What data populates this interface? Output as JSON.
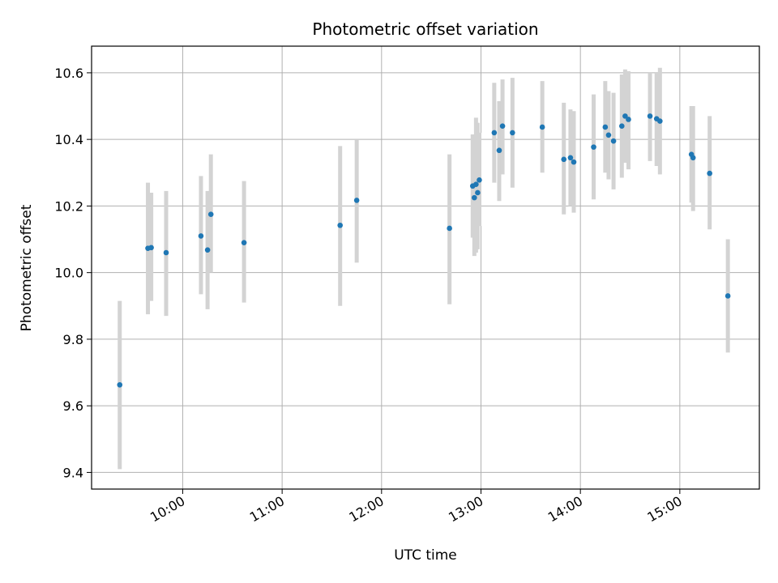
{
  "chart_data": {
    "type": "scatter",
    "title": "Photometric offset variation",
    "xlabel": "UTC time",
    "ylabel": "Photometric offset",
    "x_ticks": [
      "10:00",
      "11:00",
      "12:00",
      "13:00",
      "14:00",
      "15:00"
    ],
    "y_ticks": [
      "9.4",
      "9.6",
      "9.8",
      "10.0",
      "10.2",
      "10.4",
      "10.6"
    ],
    "xlim": [
      "09:05",
      "15:48"
    ],
    "ylim": [
      9.35,
      10.68
    ],
    "grid": true,
    "errorbar_color": "#d3d3d3",
    "point_color": "#1f77b4",
    "points": [
      {
        "t": "09:22",
        "y": 9.663,
        "lo": 9.41,
        "hi": 9.915
      },
      {
        "t": "09:39",
        "y": 10.073,
        "lo": 9.875,
        "hi": 10.27
      },
      {
        "t": "09:41",
        "y": 10.075,
        "lo": 9.915,
        "hi": 10.24
      },
      {
        "t": "09:50",
        "y": 10.06,
        "lo": 9.87,
        "hi": 10.245
      },
      {
        "t": "10:11",
        "y": 10.11,
        "lo": 9.935,
        "hi": 10.29
      },
      {
        "t": "10:15",
        "y": 10.068,
        "lo": 9.89,
        "hi": 10.245
      },
      {
        "t": "10:17",
        "y": 10.175,
        "lo": 10.0,
        "hi": 10.355
      },
      {
        "t": "10:37",
        "y": 10.09,
        "lo": 9.91,
        "hi": 10.275
      },
      {
        "t": "11:35",
        "y": 10.142,
        "lo": 9.9,
        "hi": 10.38
      },
      {
        "t": "11:45",
        "y": 10.217,
        "lo": 10.03,
        "hi": 10.4
      },
      {
        "t": "12:41",
        "y": 10.133,
        "lo": 9.905,
        "hi": 10.355
      },
      {
        "t": "12:55",
        "y": 10.26,
        "lo": 10.105,
        "hi": 10.415
      },
      {
        "t": "12:56",
        "y": 10.225,
        "lo": 10.05,
        "hi": 10.4
      },
      {
        "t": "12:57",
        "y": 10.265,
        "lo": 10.06,
        "hi": 10.465
      },
      {
        "t": "12:58",
        "y": 10.24,
        "lo": 10.07,
        "hi": 10.45
      },
      {
        "t": "12:59",
        "y": 10.278,
        "lo": 10.14,
        "hi": 10.42
      },
      {
        "t": "13:08",
        "y": 10.42,
        "lo": 10.27,
        "hi": 10.57
      },
      {
        "t": "13:11",
        "y": 10.367,
        "lo": 10.215,
        "hi": 10.515
      },
      {
        "t": "13:13",
        "y": 10.44,
        "lo": 10.295,
        "hi": 10.58
      },
      {
        "t": "13:19",
        "y": 10.42,
        "lo": 10.255,
        "hi": 10.585
      },
      {
        "t": "13:37",
        "y": 10.437,
        "lo": 10.3,
        "hi": 10.575
      },
      {
        "t": "13:50",
        "y": 10.34,
        "lo": 10.175,
        "hi": 10.51
      },
      {
        "t": "13:54",
        "y": 10.345,
        "lo": 10.2,
        "hi": 10.49
      },
      {
        "t": "13:56",
        "y": 10.332,
        "lo": 10.18,
        "hi": 10.485
      },
      {
        "t": "14:08",
        "y": 10.377,
        "lo": 10.22,
        "hi": 10.535
      },
      {
        "t": "14:15",
        "y": 10.437,
        "lo": 10.3,
        "hi": 10.575
      },
      {
        "t": "14:17",
        "y": 10.413,
        "lo": 10.28,
        "hi": 10.545
      },
      {
        "t": "14:20",
        "y": 10.395,
        "lo": 10.25,
        "hi": 10.54
      },
      {
        "t": "14:25",
        "y": 10.44,
        "lo": 10.285,
        "hi": 10.595
      },
      {
        "t": "14:27",
        "y": 10.47,
        "lo": 10.33,
        "hi": 10.61
      },
      {
        "t": "14:29",
        "y": 10.46,
        "lo": 10.31,
        "hi": 10.605
      },
      {
        "t": "14:42",
        "y": 10.47,
        "lo": 10.335,
        "hi": 10.6
      },
      {
        "t": "14:46",
        "y": 10.462,
        "lo": 10.32,
        "hi": 10.6
      },
      {
        "t": "14:48",
        "y": 10.455,
        "lo": 10.295,
        "hi": 10.615
      },
      {
        "t": "15:07",
        "y": 10.355,
        "lo": 10.21,
        "hi": 10.5
      },
      {
        "t": "15:08",
        "y": 10.345,
        "lo": 10.185,
        "hi": 10.5
      },
      {
        "t": "15:18",
        "y": 10.298,
        "lo": 10.13,
        "hi": 10.47
      },
      {
        "t": "15:29",
        "y": 9.93,
        "lo": 9.76,
        "hi": 10.1
      }
    ]
  }
}
